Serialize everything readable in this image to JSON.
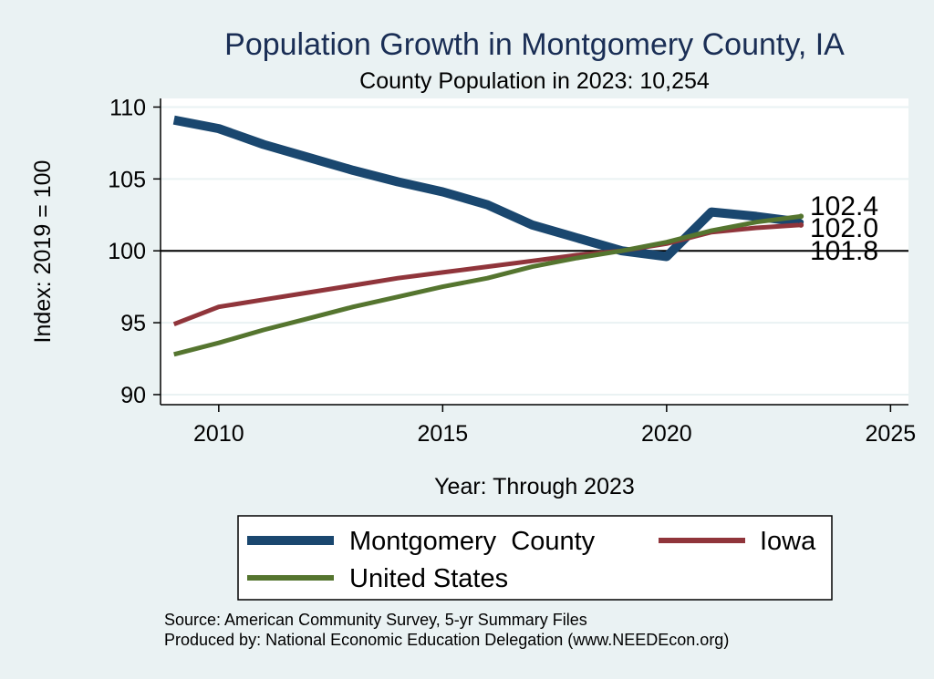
{
  "chart_data": {
    "type": "line",
    "title": "Population Growth in Montgomery County, IA",
    "subtitle": "County Population in 2023: 10,254",
    "xlabel": "Year: Through 2023",
    "ylabel": "Index: 2019 = 100",
    "xlim": [
      2008.7,
      2025.4
    ],
    "ylim": [
      89.3,
      110.6
    ],
    "xticks": [
      2010,
      2015,
      2020,
      2025
    ],
    "yticks": [
      90,
      95,
      100,
      105,
      110
    ],
    "reference_line": 100,
    "grid": true,
    "legend_position": "bottom",
    "x": [
      2009,
      2010,
      2011,
      2012,
      2013,
      2014,
      2015,
      2016,
      2017,
      2018,
      2019,
      2020,
      2021,
      2022,
      2023
    ],
    "series": [
      {
        "name": "Montgomery  County",
        "color": "#1a476f",
        "values": [
          109.1,
          108.5,
          107.4,
          106.5,
          105.6,
          104.8,
          104.1,
          103.2,
          101.8,
          100.9,
          100.0,
          99.6,
          102.7,
          102.4,
          102.0
        ]
      },
      {
        "name": "Iowa",
        "color": "#90353b",
        "values": [
          94.9,
          96.1,
          96.6,
          97.1,
          97.6,
          98.1,
          98.5,
          98.9,
          99.3,
          99.7,
          100.0,
          100.5,
          101.3,
          101.6,
          101.8
        ]
      },
      {
        "name": "United States",
        "color": "#55752f",
        "values": [
          92.8,
          93.6,
          94.5,
          95.3,
          96.1,
          96.8,
          97.5,
          98.1,
          98.9,
          99.5,
          100.0,
          100.6,
          101.4,
          102.0,
          102.4
        ]
      }
    ],
    "end_labels": [
      "102.4",
      "102.0",
      "101.8"
    ],
    "source": "Source: American Community Survey, 5-yr Summary Files",
    "producer": "Produced by: National Economic Education Delegation (www.NEEDEcon.org)"
  }
}
